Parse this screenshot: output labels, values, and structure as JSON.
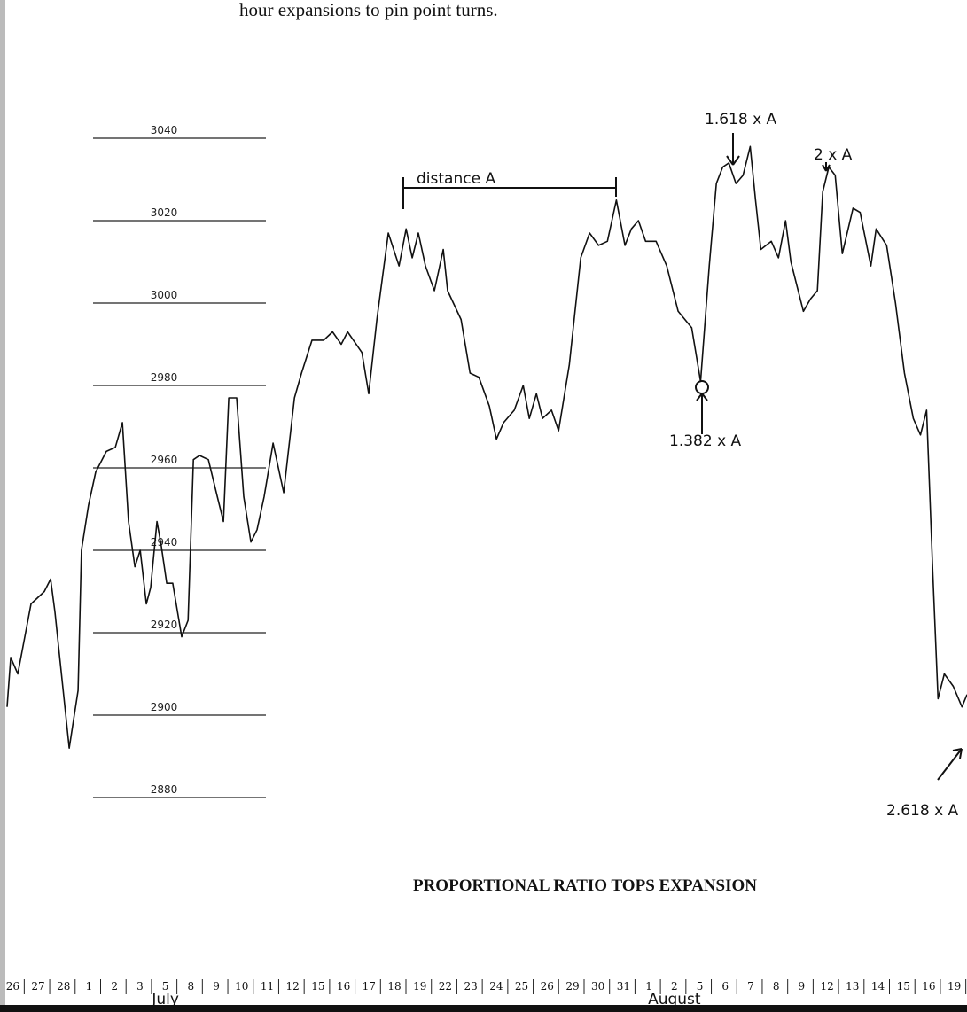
{
  "text_above": "hour expansions to pin point turns.",
  "chart_data": {
    "type": "line",
    "title": "PROPORTIONAL RATIO TOPS EXPANSION",
    "color": "#111111",
    "xlim": [
      0,
      38
    ],
    "ylim": [
      2880,
      3040
    ],
    "yticks": [
      2880,
      2900,
      2920,
      2940,
      2960,
      2980,
      3000,
      3020,
      3040
    ],
    "xticks": [
      {
        "value": 0.5,
        "label": "26"
      },
      {
        "value": 1.5,
        "label": "27"
      },
      {
        "value": 2.5,
        "label": "28"
      },
      {
        "value": 3.5,
        "label": "1"
      },
      {
        "value": 4.5,
        "label": "2"
      },
      {
        "value": 5.5,
        "label": "3"
      },
      {
        "value": 6.5,
        "label": "5"
      },
      {
        "value": 7.5,
        "label": "8"
      },
      {
        "value": 8.5,
        "label": "9"
      },
      {
        "value": 9.5,
        "label": "10"
      },
      {
        "value": 10.5,
        "label": "11"
      },
      {
        "value": 11.5,
        "label": "12"
      },
      {
        "value": 12.5,
        "label": "15"
      },
      {
        "value": 13.5,
        "label": "16"
      },
      {
        "value": 14.5,
        "label": "17"
      },
      {
        "value": 15.5,
        "label": "18"
      },
      {
        "value": 16.5,
        "label": "19"
      },
      {
        "value": 17.5,
        "label": "22"
      },
      {
        "value": 18.5,
        "label": "23"
      },
      {
        "value": 19.5,
        "label": "24"
      },
      {
        "value": 20.5,
        "label": "25"
      },
      {
        "value": 21.5,
        "label": "26"
      },
      {
        "value": 22.5,
        "label": "29"
      },
      {
        "value": 23.5,
        "label": "30"
      },
      {
        "value": 24.5,
        "label": "31"
      },
      {
        "value": 25.5,
        "label": "1"
      },
      {
        "value": 26.5,
        "label": "2"
      },
      {
        "value": 27.5,
        "label": "5"
      },
      {
        "value": 28.5,
        "label": "6"
      },
      {
        "value": 29.5,
        "label": "7"
      },
      {
        "value": 30.5,
        "label": "8"
      },
      {
        "value": 31.5,
        "label": "9"
      },
      {
        "value": 32.5,
        "label": "12"
      },
      {
        "value": 33.5,
        "label": "13"
      },
      {
        "value": 34.5,
        "label": "14"
      },
      {
        "value": 35.5,
        "label": "15"
      },
      {
        "value": 36.5,
        "label": "16"
      },
      {
        "value": 37.5,
        "label": "19"
      }
    ],
    "months": [
      {
        "value": 6.5,
        "label": "July"
      },
      {
        "value": 26.5,
        "label": "August"
      }
    ],
    "annotations": [
      "distance A",
      "1.618 x A",
      "2 x A",
      "1.382 x A",
      "2.618 x A"
    ],
    "x": [
      0.28,
      0.42,
      0.7,
      1.22,
      1.74,
      1.99,
      2.16,
      2.72,
      3.07,
      3.2,
      3.48,
      3.76,
      4.18,
      4.53,
      4.81,
      5.05,
      5.3,
      5.51,
      5.75,
      5.92,
      6.17,
      6.34,
      6.55,
      6.79,
      7.14,
      7.39,
      7.6,
      7.84,
      8.19,
      8.54,
      8.78,
      8.99,
      9.3,
      9.58,
      9.86,
      10.1,
      10.38,
      10.73,
      11.15,
      11.57,
      11.85,
      12.26,
      12.72,
      13.07,
      13.41,
      13.66,
      14.22,
      14.49,
      14.81,
      15.26,
      15.68,
      15.96,
      16.2,
      16.44,
      16.72,
      17.07,
      17.42,
      17.59,
      18.12,
      18.47,
      18.82,
      19.23,
      19.51,
      19.79,
      20.21,
      20.56,
      20.8,
      21.08,
      21.32,
      21.67,
      21.95,
      22.37,
      22.82,
      23.17,
      23.52,
      23.87,
      24.22,
      24.56,
      24.81,
      25.09,
      25.37,
      25.78,
      26.2,
      26.65,
      27.18,
      27.53,
      27.87,
      28.15,
      28.4,
      28.64,
      28.92,
      29.2,
      29.48,
      29.69,
      29.9,
      30.31,
      30.59,
      30.87,
      31.08,
      31.57,
      31.85,
      32.12,
      32.33,
      32.57,
      32.82,
      33.1,
      33.52,
      33.8,
      34.22,
      34.43,
      34.84,
      35.19,
      35.54,
      35.89,
      36.17,
      36.41,
      36.66,
      36.86,
      37.11,
      37.46,
      37.8,
      38.0
    ],
    "values": [
      2902,
      2914,
      2910,
      2927,
      2930,
      2933,
      2925,
      2892,
      2906,
      2940,
      2951,
      2959,
      2964,
      2965,
      2971,
      2947,
      2936,
      2940,
      2927,
      2931,
      2947,
      2941,
      2932,
      2932,
      2919,
      2923,
      2962,
      2963,
      2962,
      2953,
      2947,
      2977,
      2977,
      2953,
      2942,
      2945,
      2953,
      2966,
      2954,
      2977,
      2983,
      2991,
      2991,
      2993,
      2990,
      2993,
      2988,
      2978,
      2996,
      3017,
      3009,
      3018,
      3011,
      3017,
      3009,
      3003,
      3013,
      3003,
      2996,
      2983,
      2982,
      2975,
      2967,
      2971,
      2974,
      2980,
      2972,
      2978,
      2972,
      2974,
      2969,
      2985,
      3011,
      3017,
      3014,
      3015,
      3025,
      3014,
      3018,
      3020,
      3015,
      3015,
      3009,
      2998,
      2994,
      2981,
      3009,
      3029,
      3033,
      3034,
      3029,
      3031,
      3038,
      3025,
      3013,
      3015,
      3011,
      3020,
      3010,
      2998,
      3001,
      3003,
      3027,
      3033,
      3031,
      3012,
      3023,
      3022,
      3009,
      3018,
      3014,
      3000,
      2983,
      2972,
      2968,
      2974,
      2934,
      2904,
      2910,
      2907,
      2902,
      2905
    ]
  }
}
